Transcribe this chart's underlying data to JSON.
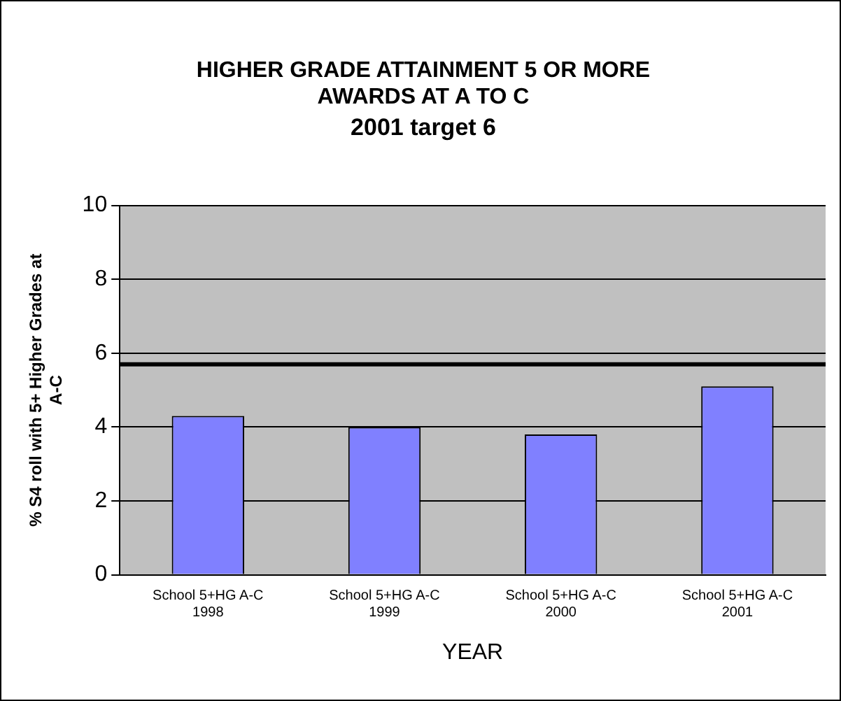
{
  "chart_data": {
    "type": "bar",
    "title": "HIGHER GRADE ATTAINMENT 5 OR MORE AWARDS AT A TO C",
    "subtitle": "2001 target 6",
    "xlabel": "YEAR",
    "ylabel": "% S4 roll with 5+ Higher Grades at A-C",
    "categories": [
      "School 5+HG A-C\n1998",
      "School 5+HG A-C\n1999",
      "School 5+HG A-C\n2000",
      "School 5+HG A-C\n2001"
    ],
    "values": [
      4.3,
      4.0,
      3.8,
      5.1
    ],
    "color": "#8080ff",
    "ylim": [
      0,
      10
    ],
    "yticks": [
      0,
      2,
      4,
      6,
      8,
      10
    ],
    "grid": "y",
    "ref_lines": [
      {
        "axis": "y",
        "value": 5.7,
        "color": "#000000"
      }
    ]
  }
}
